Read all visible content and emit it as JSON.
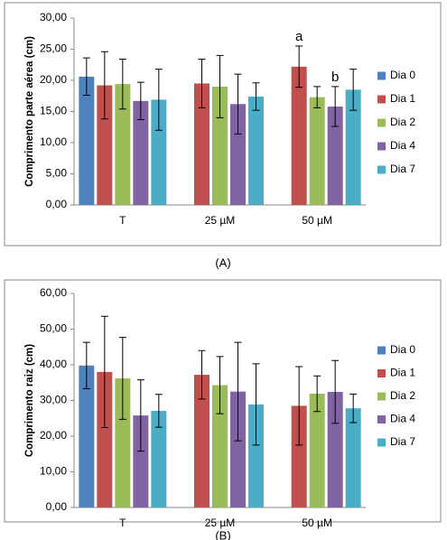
{
  "chart_data": [
    {
      "type": "bar",
      "y_label": "Comprimento parte aérea (cm)",
      "caption": "(A)",
      "categories": [
        "T",
        "25 µM",
        "50 µM"
      ],
      "ylim": [
        0,
        30
      ],
      "yticks": [
        {
          "value": 0,
          "label": "0,00"
        },
        {
          "value": 5,
          "label": "5,00"
        },
        {
          "value": 10,
          "label": "10,00"
        },
        {
          "value": 15,
          "label": "15,00"
        },
        {
          "value": 20,
          "label": "20,00"
        },
        {
          "value": 25,
          "label": "25,00"
        },
        {
          "value": 30,
          "label": "30,00"
        }
      ],
      "legend": "right",
      "series": [
        {
          "name": "Dia 0",
          "color": "#4f81bd",
          "values": [
            20.6,
            null,
            null
          ],
          "errors": [
            3.0,
            null,
            null
          ]
        },
        {
          "name": "Dia 1",
          "color": "#c0504d",
          "values": [
            19.2,
            19.5,
            22.2
          ],
          "errors": [
            5.4,
            3.9,
            3.3
          ]
        },
        {
          "name": "Dia 2",
          "color": "#9bbb59",
          "values": [
            19.4,
            19.0,
            17.3
          ],
          "errors": [
            4.0,
            5.0,
            1.7
          ]
        },
        {
          "name": "Dia 4",
          "color": "#8064a2",
          "values": [
            16.7,
            16.2,
            15.8
          ],
          "errors": [
            3.0,
            4.8,
            3.2
          ]
        },
        {
          "name": "Dia 7",
          "color": "#4bacc6",
          "values": [
            16.9,
            17.4,
            18.5
          ],
          "errors": [
            4.9,
            2.2,
            3.3
          ]
        }
      ],
      "annotations": [
        {
          "text": "a",
          "series": "Dia 1",
          "category": "50 µM"
        },
        {
          "text": "b",
          "series": "Dia 4",
          "category": "50 µM"
        }
      ]
    },
    {
      "type": "bar",
      "y_label": "Comprimento raiz (cm)",
      "caption": "(B)",
      "categories": [
        "T",
        "25 µM",
        "50 µM"
      ],
      "ylim": [
        0,
        60
      ],
      "yticks": [
        {
          "value": 0,
          "label": "0,00"
        },
        {
          "value": 10,
          "label": "10,00"
        },
        {
          "value": 20,
          "label": "20,00"
        },
        {
          "value": 30,
          "label": "30,00"
        },
        {
          "value": 40,
          "label": "40,00"
        },
        {
          "value": 50,
          "label": "50,00"
        },
        {
          "value": 60,
          "label": "60,00"
        }
      ],
      "legend": "right",
      "series": [
        {
          "name": "Dia 0",
          "color": "#4f81bd",
          "values": [
            39.8,
            null,
            null
          ],
          "errors": [
            6.5,
            null,
            null
          ]
        },
        {
          "name": "Dia 1",
          "color": "#c0504d",
          "values": [
            38.0,
            37.2,
            28.5
          ],
          "errors": [
            15.6,
            6.8,
            11.0
          ]
        },
        {
          "name": "Dia 2",
          "color": "#9bbb59",
          "values": [
            36.2,
            34.3,
            31.9
          ],
          "errors": [
            11.5,
            8.0,
            5.0
          ]
        },
        {
          "name": "Dia 4",
          "color": "#8064a2",
          "values": [
            25.8,
            32.5,
            32.4
          ],
          "errors": [
            10.0,
            13.8,
            8.8
          ]
        },
        {
          "name": "Dia 7",
          "color": "#4bacc6",
          "values": [
            27.1,
            28.9,
            27.8
          ],
          "errors": [
            4.6,
            11.4,
            4.0
          ]
        }
      ],
      "annotations": []
    }
  ]
}
